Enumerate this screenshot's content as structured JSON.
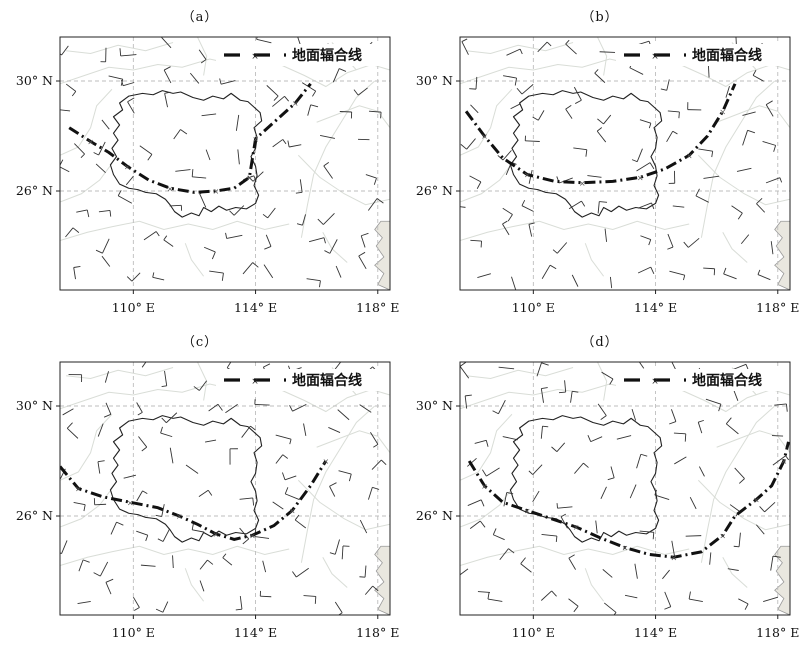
{
  "panels": [
    {
      "id": "a",
      "label": "（a）"
    },
    {
      "id": "b",
      "label": "（b）"
    },
    {
      "id": "c",
      "label": "（c）"
    },
    {
      "id": "d",
      "label": "（d）"
    }
  ],
  "axes": {
    "lon_ticks": [
      {
        "value": 110,
        "label": "110° E"
      },
      {
        "value": 114,
        "label": "114° E"
      },
      {
        "value": 118,
        "label": "118° E"
      }
    ],
    "lat_ticks": [
      {
        "value": 30,
        "label": "30° N"
      },
      {
        "value": 26,
        "label": "26° N"
      }
    ],
    "lon_range": [
      107.6,
      118.4
    ],
    "lat_range": [
      22.4,
      31.6
    ]
  },
  "legend": {
    "label": "地面辐合线",
    "marker": "×"
  },
  "colors": {
    "convergence_line": "#111111",
    "gridline": "#bdbdbd",
    "boundary": "#222222",
    "background_borders": "#d9ddd7",
    "sea": "#e9e7df"
  },
  "convergence_lines": {
    "a": [
      [
        107.9,
        28.3
      ],
      [
        108.6,
        27.8
      ],
      [
        109.2,
        27.4
      ],
      [
        109.8,
        26.9
      ],
      [
        110.5,
        26.4
      ],
      [
        111.2,
        26.1
      ],
      [
        112.0,
        25.95
      ],
      [
        112.7,
        26.0
      ],
      [
        113.3,
        26.1
      ],
      [
        113.8,
        26.5
      ],
      [
        113.9,
        27.2
      ],
      [
        114.0,
        27.9
      ],
      [
        114.6,
        28.5
      ],
      [
        115.3,
        29.2
      ],
      [
        115.8,
        29.9
      ]
    ],
    "b": [
      [
        107.8,
        28.9
      ],
      [
        108.4,
        28.0
      ],
      [
        109.0,
        27.2
      ],
      [
        109.8,
        26.6
      ],
      [
        110.7,
        26.35
      ],
      [
        111.6,
        26.3
      ],
      [
        112.6,
        26.35
      ],
      [
        113.5,
        26.5
      ],
      [
        114.3,
        26.8
      ],
      [
        115.1,
        27.3
      ],
      [
        115.7,
        28.0
      ],
      [
        116.2,
        28.9
      ],
      [
        116.6,
        29.9
      ]
    ],
    "c": [
      [
        107.6,
        27.8
      ],
      [
        108.2,
        27.0
      ],
      [
        109.0,
        26.7
      ],
      [
        109.9,
        26.5
      ],
      [
        110.8,
        26.3
      ],
      [
        111.5,
        26.0
      ],
      [
        112.1,
        25.7
      ],
      [
        112.7,
        25.35
      ],
      [
        113.3,
        25.15
      ],
      [
        113.9,
        25.3
      ],
      [
        114.6,
        25.65
      ],
      [
        115.2,
        26.2
      ],
      [
        115.8,
        27.1
      ],
      [
        116.3,
        28.0
      ]
    ],
    "d": [
      [
        107.9,
        28.0
      ],
      [
        108.4,
        27.1
      ],
      [
        109.0,
        26.5
      ],
      [
        109.8,
        26.2
      ],
      [
        110.6,
        25.9
      ],
      [
        111.4,
        25.6
      ],
      [
        112.2,
        25.2
      ],
      [
        113.0,
        24.85
      ],
      [
        113.8,
        24.6
      ],
      [
        114.6,
        24.5
      ],
      [
        115.5,
        24.7
      ],
      [
        116.2,
        25.3
      ],
      [
        116.6,
        26.0
      ],
      [
        117.3,
        26.6
      ],
      [
        117.8,
        27.1
      ],
      [
        118.2,
        28.0
      ],
      [
        118.35,
        28.7
      ]
    ]
  }
}
